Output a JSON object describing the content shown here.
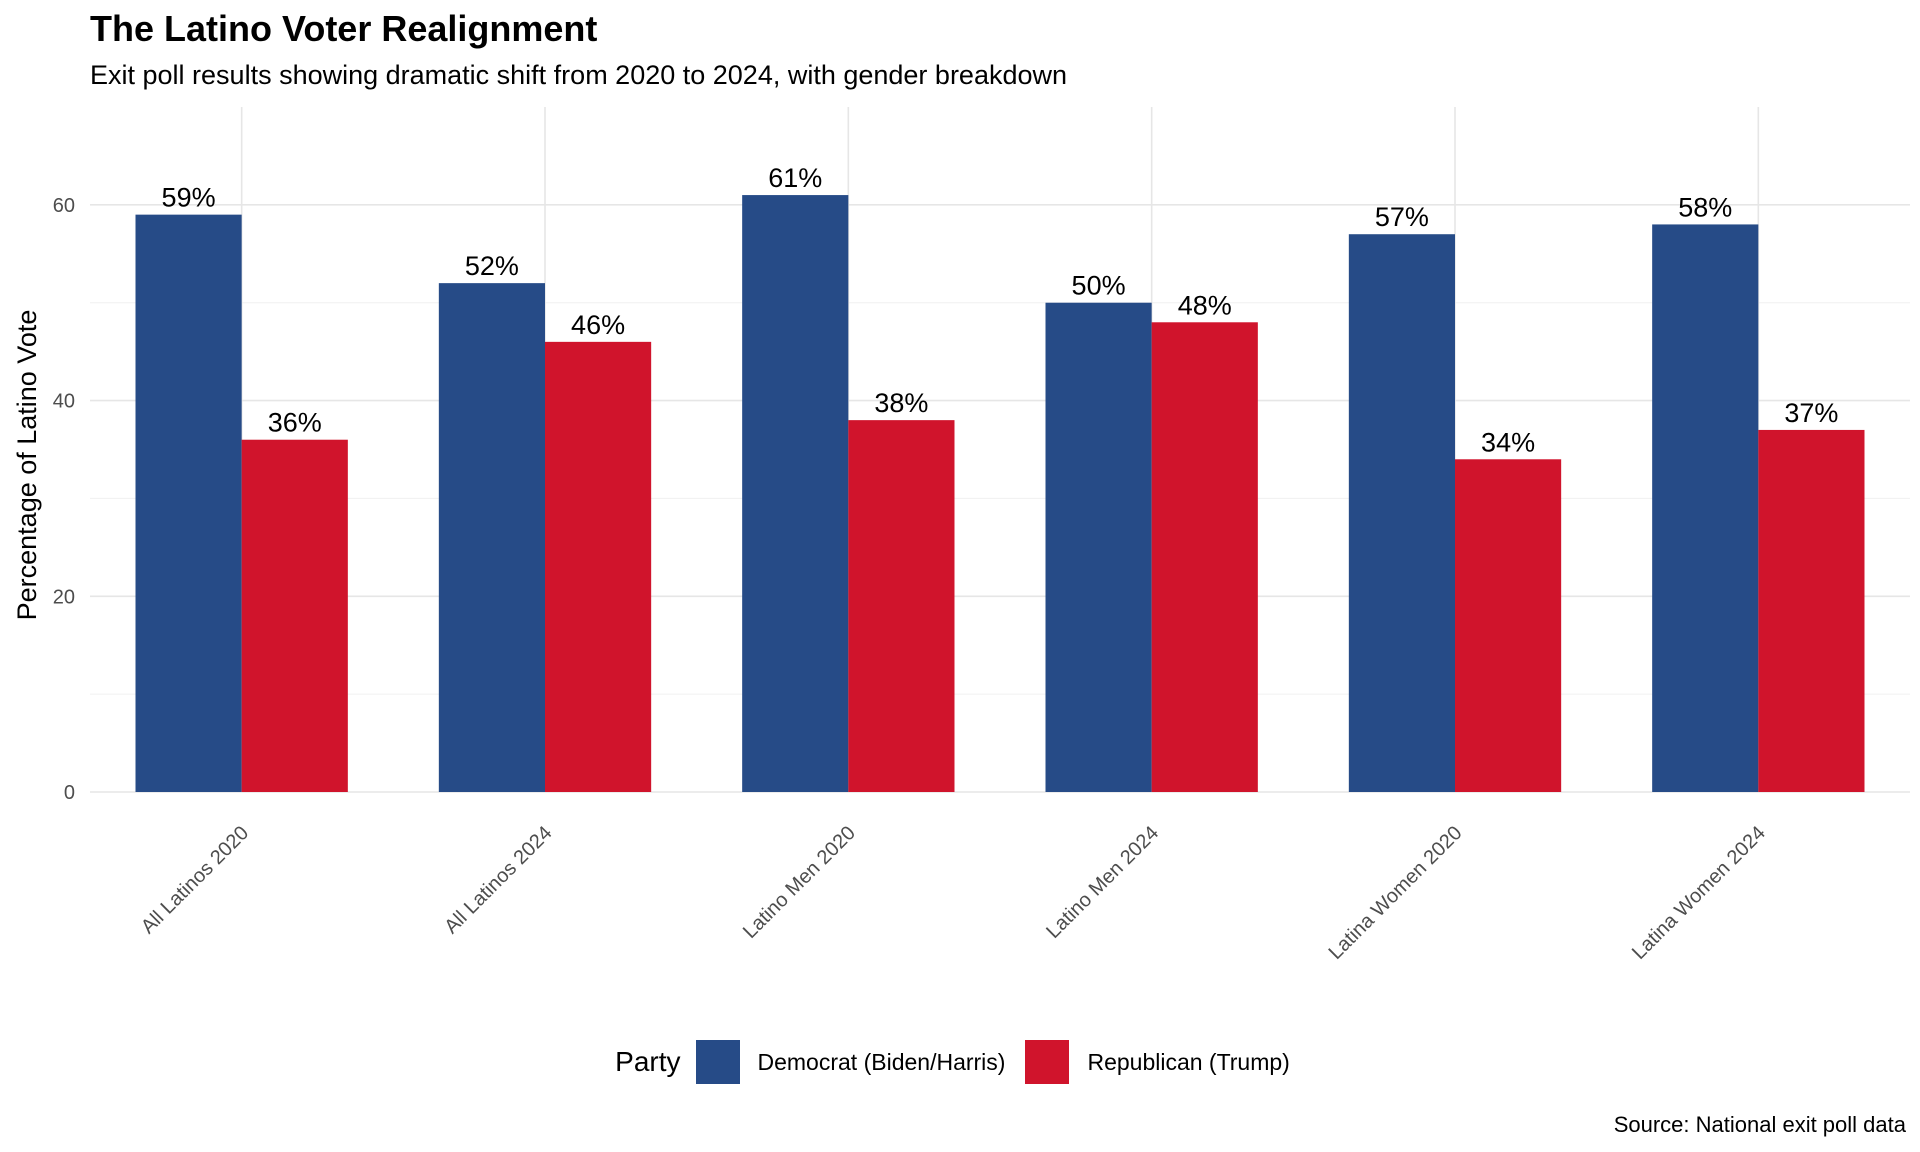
{
  "chart_data": {
    "type": "bar",
    "title": "The Latino Voter Realignment",
    "subtitle": "Exit poll results showing dramatic shift from 2020 to 2024, with gender breakdown",
    "caption": "Source: National exit poll data",
    "xlabel": "",
    "ylabel": "Percentage of Latino Vote",
    "ylim": [
      0,
      70
    ],
    "yticks": [
      0,
      20,
      40,
      60
    ],
    "categories": [
      "All Latinos 2020",
      "All Latinos 2024",
      "Latino Men 2020",
      "Latino Men 2024",
      "Latina Women 2020",
      "Latina Women 2024"
    ],
    "series": [
      {
        "name": "Democrat (Biden/Harris)",
        "color": "#264b87",
        "values": [
          59,
          52,
          61,
          50,
          57,
          58
        ],
        "labels": [
          "59%",
          "52%",
          "61%",
          "50%",
          "57%",
          "58%"
        ]
      },
      {
        "name": "Republican (Trump)",
        "color": "#d0142c",
        "values": [
          36,
          46,
          38,
          48,
          34,
          37
        ],
        "labels": [
          "36%",
          "46%",
          "38%",
          "48%",
          "34%",
          "37%"
        ]
      }
    ],
    "legend": {
      "title": "Party",
      "position": "bottom"
    },
    "grid": true
  }
}
